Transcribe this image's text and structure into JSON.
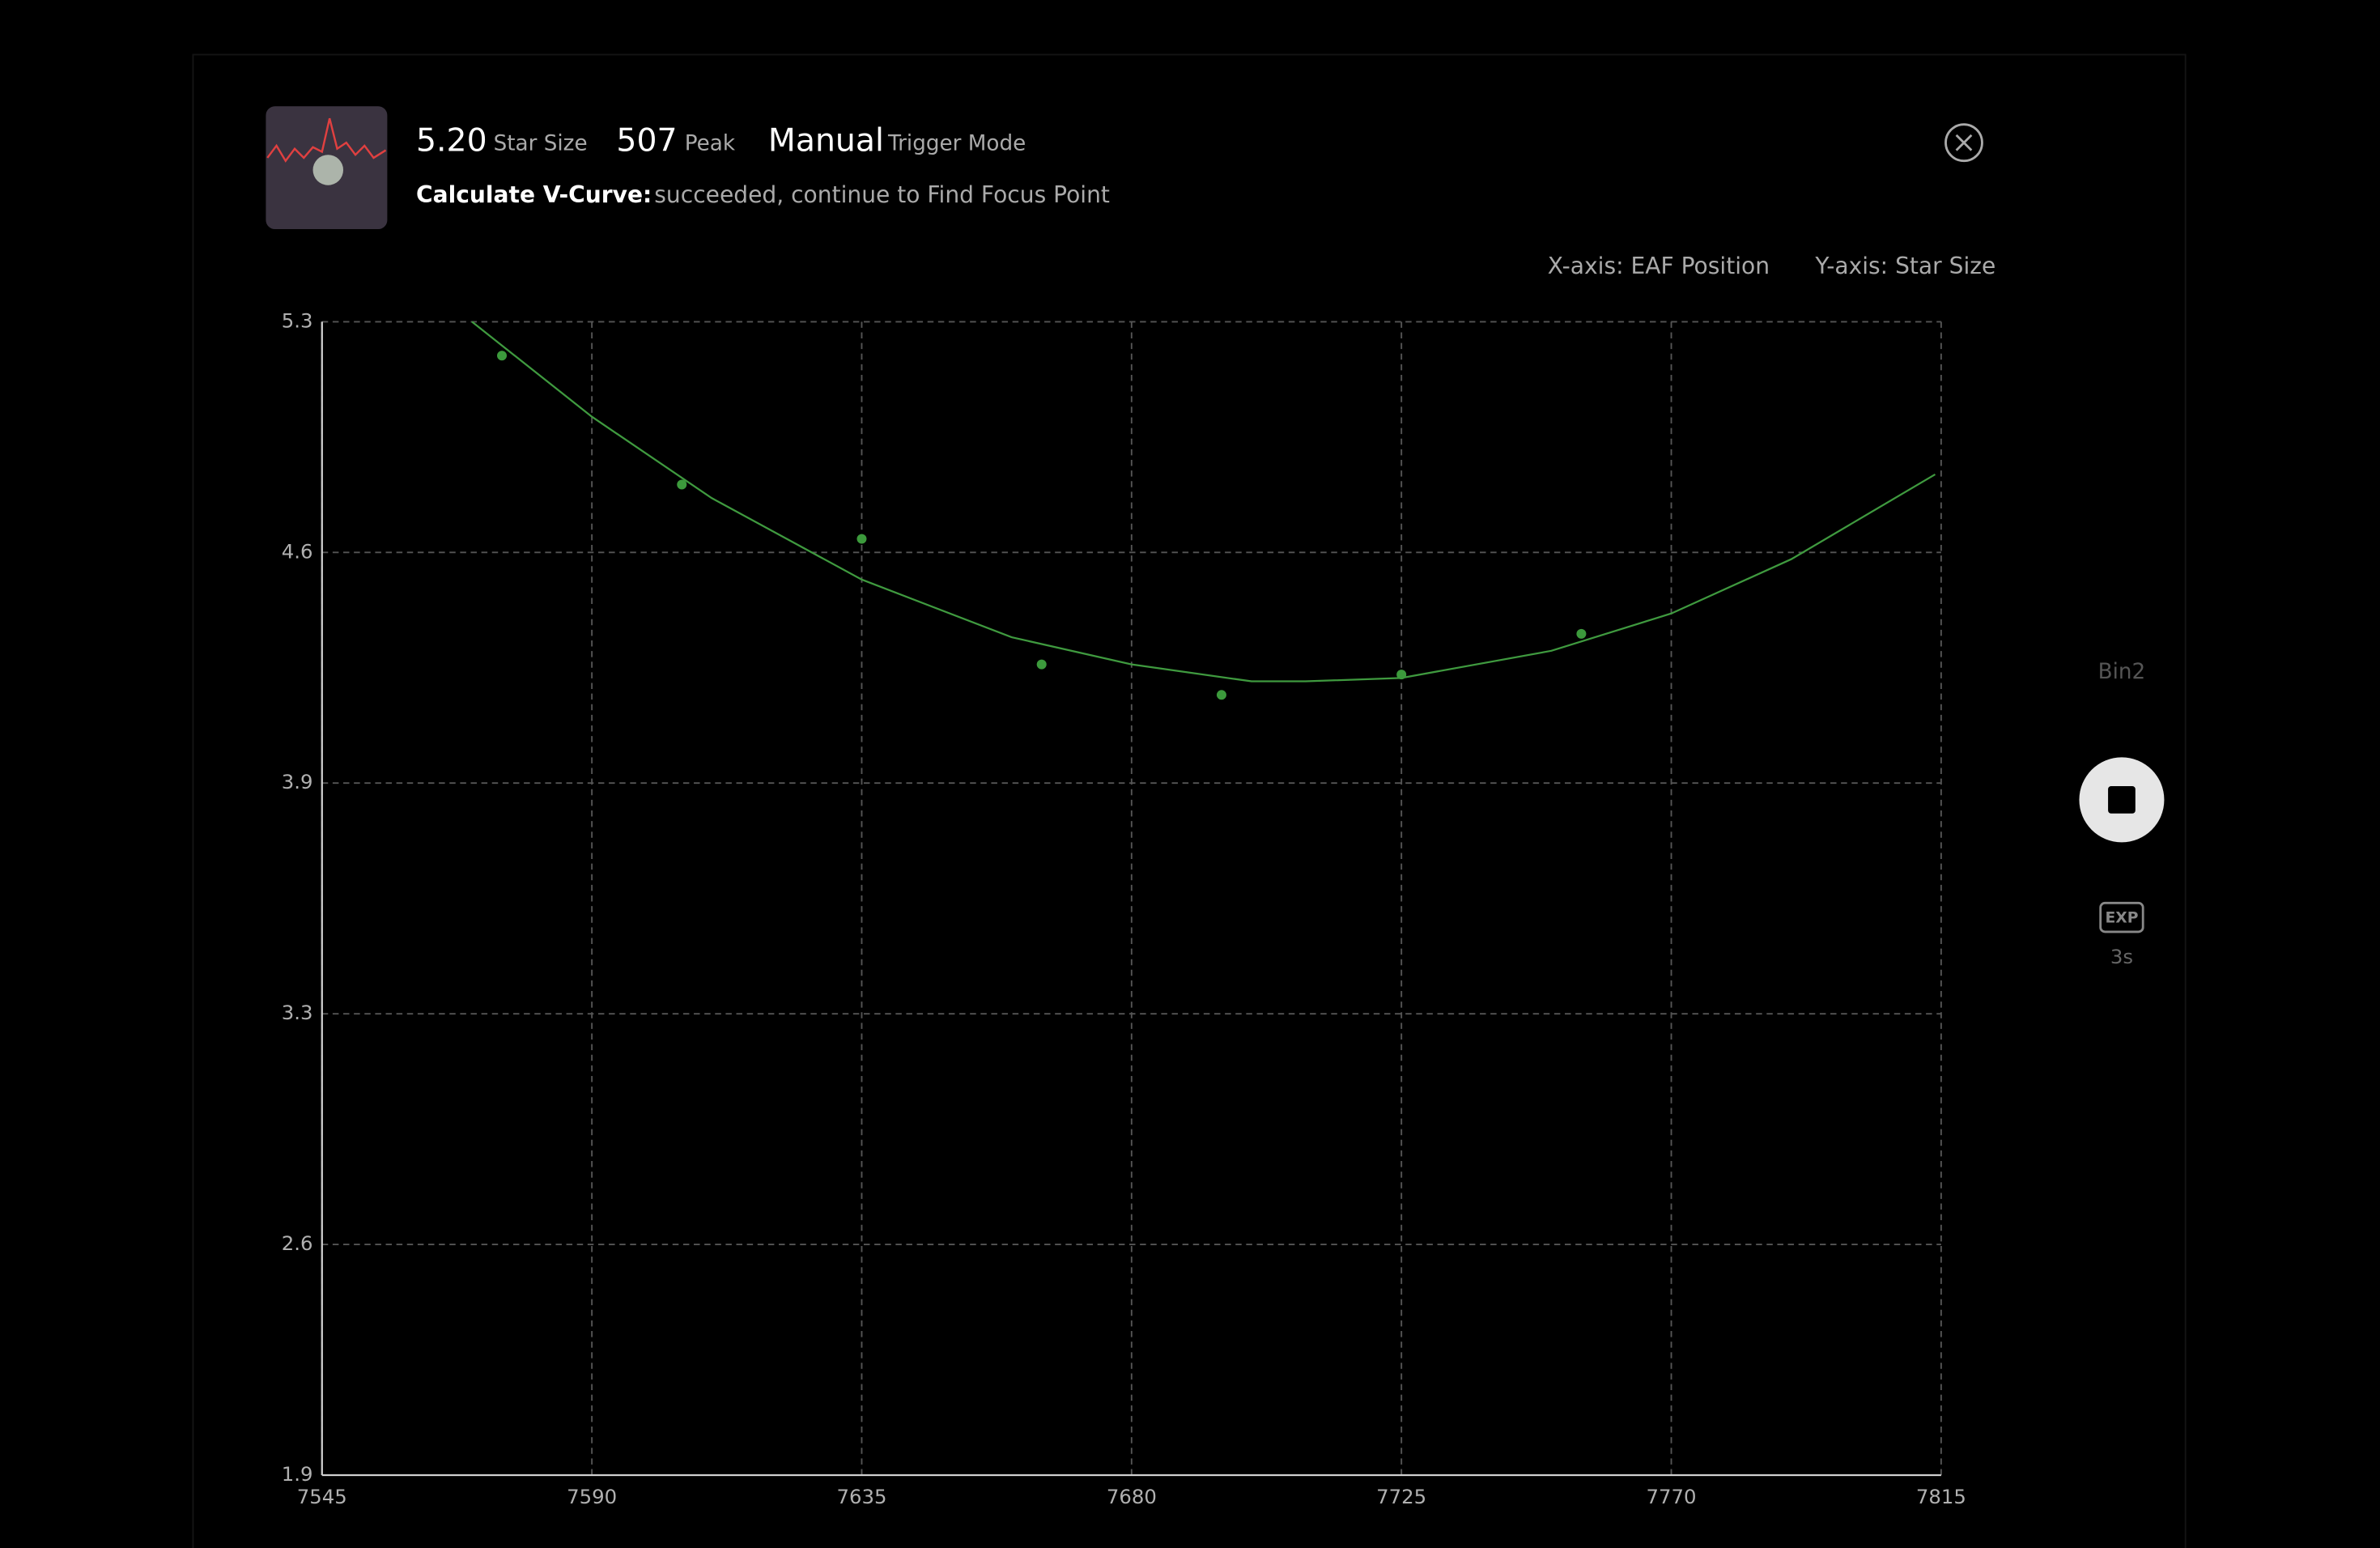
{
  "header": {
    "star_size_value": "5.20",
    "star_size_label": "Star Size",
    "peak_value": "507",
    "peak_label": "Peak",
    "mode_value": "Manual",
    "mode_label": "Trigger Mode",
    "status_label": "Calculate V-Curve:",
    "status_text": "succeeded, continue to Find Focus Point"
  },
  "side_panel": {
    "bin": "Bin2",
    "exp_icon": "EXP",
    "exposure": "3s"
  },
  "chart_data": {
    "type": "scatter",
    "x_label": "X-axis: EAF Position",
    "y_label": "Y-axis: Star Size",
    "x": [
      7575,
      7605,
      7635,
      7665,
      7695,
      7725,
      7755
    ],
    "values": [
      5.2,
      4.82,
      4.66,
      4.29,
      4.2,
      4.26,
      4.38
    ],
    "color": "#3c9a3c",
    "fit": {
      "color": "#3f9a3f",
      "x": [
        7570,
        7590,
        7610,
        7635,
        7660,
        7680,
        7700,
        7709,
        7725,
        7750,
        7770,
        7790,
        7814
      ],
      "values": [
        5.3,
        5.02,
        4.78,
        4.54,
        4.37,
        4.29,
        4.24,
        4.24,
        4.25,
        4.33,
        4.44,
        4.6,
        4.85
      ]
    },
    "xlim": [
      7545,
      7815
    ],
    "xticks": [
      7545,
      7590,
      7635,
      7680,
      7725,
      7770,
      7815
    ],
    "ylim": [
      1.9,
      5.3
    ],
    "yticks": [
      1.9,
      {
        "value": 2.58,
        "label": "2.6"
      },
      {
        "value": 3.26,
        "label": "3.3"
      },
      {
        "value": 3.94,
        "label": "3.9"
      },
      {
        "value": 4.62,
        "label": "4.6"
      },
      5.3
    ],
    "grid": true
  }
}
